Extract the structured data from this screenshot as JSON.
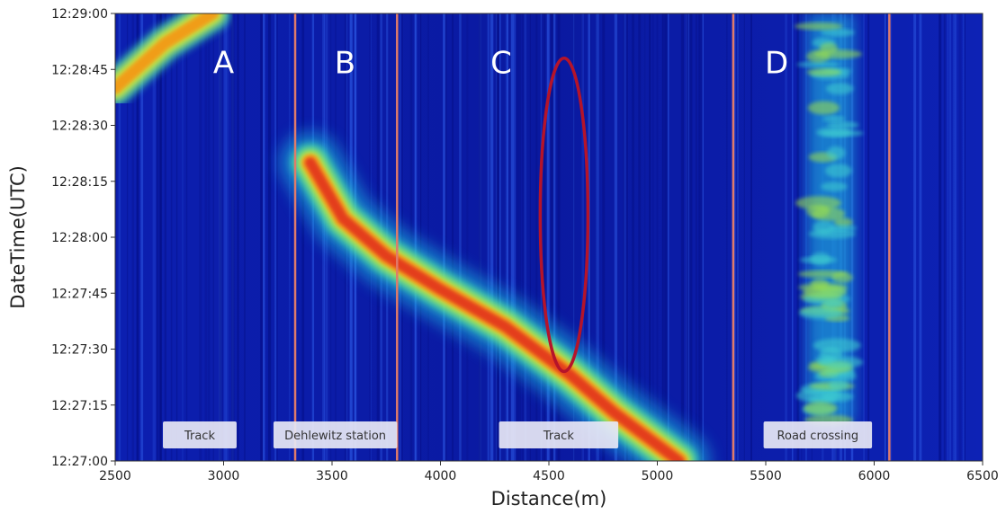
{
  "chart_data": {
    "type": "heatmap",
    "title": "",
    "xlabel": "Distance(m)",
    "ylabel": "DateTime(UTC)",
    "xlim": [
      2500,
      6500
    ],
    "x_ticks": [
      2500,
      3000,
      3500,
      4000,
      4500,
      5000,
      5500,
      6000,
      6500
    ],
    "y_ticks": [
      "12:27:00",
      "12:27:15",
      "12:27:30",
      "12:27:45",
      "12:28:00",
      "12:28:15",
      "12:28:30",
      "12:28:45",
      "12:29:00"
    ],
    "colormap": "jet",
    "section_boundaries_m": [
      3330,
      3800,
      5350,
      6070
    ],
    "sections": [
      {
        "label": "A",
        "x": 3000
      },
      {
        "label": "B",
        "x": 3560
      },
      {
        "label": "C",
        "x": 4280
      },
      {
        "label": "D",
        "x": 5550
      }
    ],
    "annotations": [
      {
        "label": "Track",
        "x_from": 2720,
        "x_to": 3060
      },
      {
        "label": "Dehlewitz station",
        "x_from": 3230,
        "x_to": 3800
      },
      {
        "label": "Track",
        "x_from": 4270,
        "x_to": 4820
      },
      {
        "label": "Road crossing",
        "x_from": 5490,
        "x_to": 5990
      }
    ],
    "highlight_ellipse": {
      "x_center": 4570,
      "x_halfwidth": 110,
      "t_from": "12:27:24",
      "t_to": "12:28:48"
    },
    "signals": [
      {
        "name": "train_early",
        "points": [
          [
            2500,
            "12:28:40"
          ],
          [
            2730,
            "12:28:52"
          ],
          [
            2950,
            "12:29:00"
          ]
        ]
      },
      {
        "name": "train_main",
        "points": [
          [
            3400,
            "12:28:20"
          ],
          [
            3550,
            "12:28:05"
          ],
          [
            3750,
            "12:27:55"
          ],
          [
            4000,
            "12:27:46"
          ],
          [
            4300,
            "12:27:36"
          ],
          [
            4600,
            "12:27:23"
          ],
          [
            4800,
            "12:27:13"
          ],
          [
            5100,
            "12:27:00"
          ]
        ]
      },
      {
        "name": "stationary_c",
        "x": 4570,
        "t_from": "12:27:30",
        "t_to": "12:28:45"
      },
      {
        "name": "road_crossing_noise",
        "x_from": 5650,
        "x_to": 5950,
        "t_from": "12:27:10",
        "t_to": "12:29:00"
      }
    ]
  },
  "style": {
    "background": "#0a1aa8",
    "boundary_color": "#e07b6a",
    "ellipse_color": "#b5142a"
  }
}
